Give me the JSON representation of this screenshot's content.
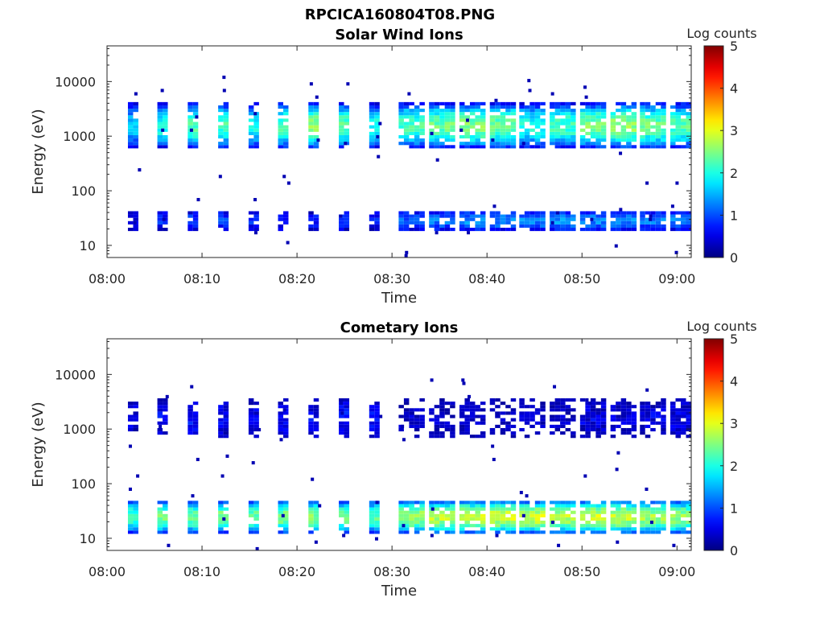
{
  "figure": {
    "title": "RPCICA160804T08.PNG"
  },
  "chart_data": [
    {
      "type": "heatmap",
      "title": "Solar Wind Ions",
      "xlabel": "Time",
      "ylabel": "Energy (eV)",
      "x_ticks": [
        "08:00",
        "08:10",
        "08:20",
        "08:30",
        "08:40",
        "08:50",
        "09:00"
      ],
      "y_ticks": [
        "10",
        "100",
        "1000",
        "10000"
      ],
      "y_scale": "log",
      "ylim": [
        6,
        45000
      ],
      "xlim_minutes": [
        0,
        61.5
      ],
      "colorbar": {
        "label": "Log counts",
        "ticks": [
          "0",
          "1",
          "2",
          "3",
          "4",
          "5"
        ],
        "range": [
          0,
          5
        ],
        "colormap": "jet"
      },
      "scan_starts_minutes": [
        2.2,
        5.3,
        8.5,
        11.7,
        14.9,
        18.0,
        21.2,
        24.4,
        27.6,
        30.7,
        33.9,
        37.1,
        40.3,
        43.4,
        46.6,
        49.8,
        53.0,
        56.1,
        59.3
      ],
      "bands": [
        {
          "energy_range_eV": [
            600,
            4000
          ],
          "log_counts": [
            1.6,
            2.0,
            2.3,
            2.2,
            2.0,
            2.2,
            2.6,
            2.3,
            2.0,
            2.2,
            2.4,
            2.5,
            2.4,
            2.0,
            2.2,
            2.5,
            2.6,
            2.4,
            2.3
          ]
        },
        {
          "energy_range_eV": [
            18,
            45
          ],
          "log_counts": [
            0.6,
            0.8,
            0.9,
            0.9,
            0.8,
            0.8,
            0.7,
            0.8,
            0.8,
            1.1,
            1.2,
            1.3,
            1.3,
            1.3,
            1.4,
            1.3,
            1.3,
            1.2,
            1.2
          ]
        }
      ]
    },
    {
      "type": "heatmap",
      "title": "Cometary Ions",
      "xlabel": "Time",
      "ylabel": "Energy (eV)",
      "x_ticks": [
        "08:00",
        "08:10",
        "08:20",
        "08:30",
        "08:40",
        "08:50",
        "09:00"
      ],
      "y_ticks": [
        "10",
        "100",
        "1000",
        "10000"
      ],
      "y_scale": "log",
      "ylim": [
        6,
        45000
      ],
      "xlim_minutes": [
        0,
        61.5
      ],
      "colorbar": {
        "label": "Log counts",
        "ticks": [
          "0",
          "1",
          "2",
          "3",
          "4",
          "5"
        ],
        "range": [
          0,
          5
        ],
        "colormap": "jet"
      },
      "scan_starts_minutes": [
        2.2,
        5.3,
        8.5,
        11.7,
        14.9,
        18.0,
        21.2,
        24.4,
        27.6,
        30.7,
        33.9,
        37.1,
        40.3,
        43.4,
        46.6,
        49.8,
        53.0,
        56.1,
        59.3
      ],
      "bands": [
        {
          "energy_range_eV": [
            700,
            3500
          ],
          "log_counts": [
            0.5,
            0.6,
            0.7,
            0.6,
            0.5,
            0.6,
            0.6,
            0.7,
            0.6,
            0.3,
            0.3,
            0.3,
            0.3,
            0.3,
            0.3,
            0.5,
            0.4,
            0.5,
            0.5
          ]
        },
        {
          "energy_range_eV": [
            12,
            50
          ],
          "log_counts": [
            2.2,
            2.4,
            2.4,
            2.5,
            2.4,
            2.5,
            2.5,
            2.4,
            2.3,
            2.7,
            2.8,
            2.9,
            2.9,
            2.9,
            2.8,
            2.9,
            2.8,
            2.7,
            2.6
          ]
        }
      ]
    }
  ]
}
